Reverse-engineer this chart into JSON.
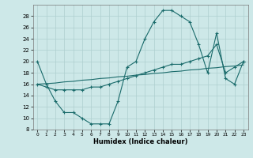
{
  "xlabel": "Humidex (Indice chaleur)",
  "bg_color": "#cde8e8",
  "grid_color": "#aecfcf",
  "line_color": "#1a6b6b",
  "ylim": [
    8,
    30
  ],
  "xlim": [
    -0.5,
    23.5
  ],
  "yticks": [
    8,
    10,
    12,
    14,
    16,
    18,
    20,
    22,
    24,
    26,
    28
  ],
  "xticks": [
    0,
    1,
    2,
    3,
    4,
    5,
    6,
    7,
    8,
    9,
    10,
    11,
    12,
    13,
    14,
    15,
    16,
    17,
    18,
    19,
    20,
    21,
    22,
    23
  ],
  "series1_x": [
    0,
    1,
    2,
    3,
    4,
    5,
    6,
    7,
    8,
    9,
    10,
    11,
    12,
    13,
    14,
    15,
    16,
    17,
    18,
    19,
    20,
    21,
    22,
    23
  ],
  "series1_y": [
    20,
    16,
    13,
    11,
    11,
    10,
    9,
    9,
    9,
    13,
    19,
    20,
    24,
    27,
    29,
    29,
    28,
    27,
    23,
    18,
    25,
    17,
    16,
    20
  ],
  "series2_x": [
    0,
    1,
    2,
    3,
    4,
    5,
    6,
    7,
    8,
    9,
    10,
    11,
    12,
    13,
    14,
    15,
    16,
    17,
    18,
    19,
    20,
    21,
    22,
    23
  ],
  "series2_y": [
    16,
    15.5,
    15,
    15,
    15,
    15,
    15.5,
    15.5,
    16,
    16.5,
    17,
    17.5,
    18,
    18.5,
    19,
    19.5,
    19.5,
    20,
    20.5,
    21,
    23,
    18,
    19,
    20
  ],
  "series3_x": [
    0,
    1,
    2,
    3,
    4,
    5,
    6,
    7,
    8,
    9,
    10,
    11,
    12,
    13,
    14,
    15,
    16,
    17,
    18,
    19,
    20,
    21,
    22,
    23
  ],
  "series3_y": [
    16,
    16.1,
    16.2,
    16.4,
    16.5,
    16.7,
    16.8,
    17.0,
    17.1,
    17.3,
    17.4,
    17.6,
    17.7,
    17.9,
    18.0,
    18.2,
    18.3,
    18.5,
    18.6,
    18.8,
    18.9,
    19.1,
    19.2,
    19.4
  ]
}
